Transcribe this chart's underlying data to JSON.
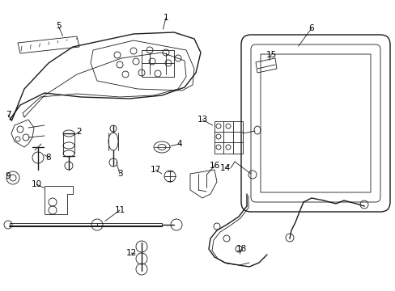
{
  "bg_color": "#ffffff",
  "line_color": "#1a1a1a",
  "text_color": "#000000",
  "fig_width": 4.89,
  "fig_height": 3.6,
  "dpi": 100,
  "lw_thin": 0.6,
  "lw_med": 1.0,
  "lw_thick": 1.5,
  "font_size": 7.5
}
